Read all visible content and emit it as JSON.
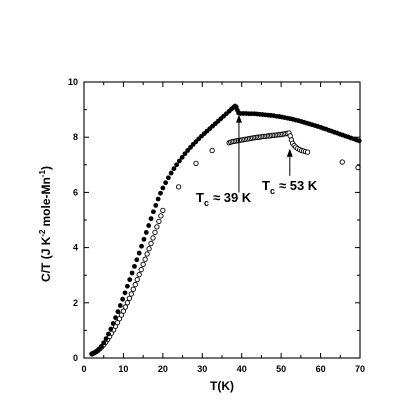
{
  "chart_data": {
    "type": "scatter",
    "title": "",
    "xlabel": "T(K)",
    "ylabel": {
      "part1": "C/T (J K",
      "sup1": "-2",
      "part2": "mole-Mn",
      "sup2": "-1",
      "part3": ")"
    },
    "xlim": [
      0,
      70
    ],
    "ylim": [
      0,
      10
    ],
    "xticks": [
      0,
      10,
      20,
      30,
      40,
      50,
      60,
      70
    ],
    "xtick_labels": [
      "0",
      "10",
      "20",
      "30",
      "40",
      "50",
      "60",
      "70"
    ],
    "yticks": [
      0,
      2,
      4,
      6,
      8,
      10
    ],
    "ytick_labels": [
      "0",
      "2",
      "4",
      "6",
      "8",
      "10"
    ],
    "x_minor_step": 5,
    "y_minor_step": 1,
    "grid": false,
    "legend": "none",
    "colors": {
      "marker": "#000000",
      "background": "#ffffff"
    },
    "series": [
      {
        "marker": "filled",
        "color": "#000000",
        "points": [
          [
            2.0,
            0.14
          ],
          [
            2.6,
            0.18
          ],
          [
            3.2,
            0.24
          ],
          [
            3.8,
            0.32
          ],
          [
            4.4,
            0.42
          ],
          [
            5.0,
            0.55
          ],
          [
            5.6,
            0.7
          ],
          [
            6.2,
            0.87
          ],
          [
            6.8,
            1.05
          ],
          [
            7.4,
            1.25
          ],
          [
            8.0,
            1.46
          ],
          [
            8.6,
            1.68
          ],
          [
            9.2,
            1.9
          ],
          [
            9.8,
            2.13
          ],
          [
            10.4,
            2.36
          ],
          [
            11.0,
            2.6
          ],
          [
            11.6,
            2.84
          ],
          [
            12.2,
            3.08
          ],
          [
            12.8,
            3.32
          ],
          [
            13.4,
            3.56
          ],
          [
            14.0,
            3.8
          ],
          [
            14.6,
            4.05
          ],
          [
            15.2,
            4.3
          ],
          [
            15.8,
            4.55
          ],
          [
            16.4,
            4.8
          ],
          [
            17.0,
            5.05
          ],
          [
            17.6,
            5.3
          ],
          [
            18.2,
            5.53
          ],
          [
            18.8,
            5.76
          ],
          [
            19.4,
            5.97
          ],
          [
            20.0,
            6.16
          ],
          [
            20.7,
            6.35
          ],
          [
            21.4,
            6.53
          ],
          [
            22.1,
            6.7
          ],
          [
            22.8,
            6.86
          ],
          [
            23.5,
            7.0
          ],
          [
            24.2,
            7.14
          ],
          [
            24.9,
            7.27
          ],
          [
            25.6,
            7.4
          ],
          [
            26.3,
            7.52
          ],
          [
            27.0,
            7.63
          ],
          [
            27.7,
            7.74
          ],
          [
            28.4,
            7.84
          ],
          [
            29.1,
            7.94
          ],
          [
            29.8,
            8.04
          ],
          [
            30.5,
            8.13
          ],
          [
            31.2,
            8.22
          ],
          [
            31.9,
            8.31
          ],
          [
            32.6,
            8.4
          ],
          [
            33.3,
            8.49
          ],
          [
            34.0,
            8.58
          ],
          [
            34.7,
            8.67
          ],
          [
            35.4,
            8.76
          ],
          [
            36.1,
            8.85
          ],
          [
            36.8,
            8.94
          ],
          [
            37.4,
            9.02
          ],
          [
            37.9,
            9.08
          ],
          [
            38.3,
            9.13
          ],
          [
            38.6,
            9.1
          ],
          [
            38.9,
            8.98
          ],
          [
            39.2,
            8.88
          ],
          [
            39.7,
            8.86
          ],
          [
            40.4,
            8.86
          ],
          [
            41.1,
            8.86
          ],
          [
            41.8,
            8.85
          ],
          [
            42.5,
            8.85
          ],
          [
            43.2,
            8.85
          ],
          [
            43.9,
            8.84
          ],
          [
            44.6,
            8.83
          ],
          [
            45.3,
            8.82
          ],
          [
            46.0,
            8.81
          ],
          [
            46.7,
            8.8
          ],
          [
            47.4,
            8.79
          ],
          [
            48.1,
            8.78
          ],
          [
            48.8,
            8.76
          ],
          [
            49.5,
            8.75
          ],
          [
            50.2,
            8.73
          ],
          [
            50.9,
            8.71
          ],
          [
            51.6,
            8.69
          ],
          [
            52.3,
            8.67
          ],
          [
            53.0,
            8.65
          ],
          [
            53.7,
            8.62
          ],
          [
            54.4,
            8.6
          ],
          [
            55.1,
            8.57
          ],
          [
            55.8,
            8.54
          ],
          [
            56.5,
            8.51
          ],
          [
            57.2,
            8.48
          ],
          [
            57.9,
            8.45
          ],
          [
            58.6,
            8.42
          ],
          [
            59.3,
            8.39
          ],
          [
            60.0,
            8.36
          ],
          [
            60.7,
            8.32
          ],
          [
            61.4,
            8.29
          ],
          [
            62.1,
            8.25
          ],
          [
            62.8,
            8.22
          ],
          [
            63.5,
            8.18
          ],
          [
            64.2,
            8.15
          ],
          [
            64.9,
            8.11
          ],
          [
            65.6,
            8.08
          ],
          [
            66.3,
            8.04
          ],
          [
            67.0,
            8.01
          ],
          [
            67.7,
            7.97
          ],
          [
            68.4,
            7.94
          ],
          [
            69.1,
            7.9
          ],
          [
            69.8,
            7.87
          ]
        ]
      },
      {
        "marker": "open",
        "color": "#000000",
        "points": [
          [
            2.0,
            0.15
          ],
          [
            2.5,
            0.18
          ],
          [
            3.0,
            0.22
          ],
          [
            3.5,
            0.27
          ],
          [
            4.0,
            0.33
          ],
          [
            4.5,
            0.4
          ],
          [
            5.0,
            0.48
          ],
          [
            5.5,
            0.57
          ],
          [
            6.0,
            0.67
          ],
          [
            6.5,
            0.78
          ],
          [
            7.0,
            0.9
          ],
          [
            7.5,
            1.02
          ],
          [
            8.0,
            1.15
          ],
          [
            8.5,
            1.28
          ],
          [
            9.0,
            1.42
          ],
          [
            9.5,
            1.56
          ],
          [
            10.0,
            1.7
          ],
          [
            10.5,
            1.85
          ],
          [
            11.0,
            2.0
          ],
          [
            11.5,
            2.16
          ],
          [
            12.0,
            2.32
          ],
          [
            12.5,
            2.49
          ],
          [
            13.0,
            2.66
          ],
          [
            13.5,
            2.84
          ],
          [
            14.0,
            3.02
          ],
          [
            14.5,
            3.2
          ],
          [
            15.0,
            3.39
          ],
          [
            15.5,
            3.58
          ],
          [
            16.0,
            3.77
          ],
          [
            16.5,
            3.96
          ],
          [
            17.0,
            4.15
          ],
          [
            17.5,
            4.35
          ],
          [
            18.0,
            4.55
          ],
          [
            18.5,
            4.75
          ],
          [
            19.0,
            4.95
          ],
          [
            19.5,
            5.15
          ],
          [
            20.0,
            5.35
          ],
          [
            24.0,
            6.2
          ],
          [
            28.4,
            7.05
          ],
          [
            32.5,
            7.52
          ],
          [
            36.8,
            7.8
          ],
          [
            37.2,
            7.82
          ],
          [
            37.6,
            7.84
          ],
          [
            38.0,
            7.85
          ],
          [
            38.4,
            7.86
          ],
          [
            38.8,
            7.87
          ],
          [
            39.2,
            7.88
          ],
          [
            39.6,
            7.89
          ],
          [
            40.0,
            7.9
          ],
          [
            40.4,
            7.91
          ],
          [
            40.8,
            7.92
          ],
          [
            41.2,
            7.93
          ],
          [
            41.6,
            7.94
          ],
          [
            42.0,
            7.95
          ],
          [
            42.4,
            7.96
          ],
          [
            42.8,
            7.97
          ],
          [
            43.2,
            7.98
          ],
          [
            43.6,
            7.99
          ],
          [
            44.0,
            8.0
          ],
          [
            44.4,
            8.0
          ],
          [
            44.8,
            8.01
          ],
          [
            45.2,
            8.02
          ],
          [
            45.6,
            8.03
          ],
          [
            46.0,
            8.03
          ],
          [
            46.4,
            8.04
          ],
          [
            46.8,
            8.05
          ],
          [
            47.2,
            8.05
          ],
          [
            47.6,
            8.06
          ],
          [
            48.0,
            8.07
          ],
          [
            48.4,
            8.07
          ],
          [
            48.8,
            8.08
          ],
          [
            49.2,
            8.09
          ],
          [
            49.6,
            8.09
          ],
          [
            50.0,
            8.1
          ],
          [
            50.4,
            8.11
          ],
          [
            50.8,
            8.12
          ],
          [
            51.2,
            8.13
          ],
          [
            51.6,
            8.14
          ],
          [
            52.0,
            8.15
          ],
          [
            52.3,
            8.05
          ],
          [
            52.6,
            7.9
          ],
          [
            52.9,
            7.78
          ],
          [
            53.3,
            7.7
          ],
          [
            53.7,
            7.64
          ],
          [
            54.2,
            7.59
          ],
          [
            54.7,
            7.55
          ],
          [
            55.2,
            7.52
          ],
          [
            55.7,
            7.5
          ],
          [
            56.2,
            7.48
          ],
          [
            56.7,
            7.46
          ],
          [
            65.5,
            7.1
          ],
          [
            69.5,
            6.9
          ]
        ]
      }
    ],
    "annotations": [
      {
        "symbol": "T",
        "subscript": "c",
        "text": "≈ 39 K"
      },
      {
        "symbol": "T",
        "subscript": "c",
        "text": "≈ 53 K"
      }
    ]
  }
}
